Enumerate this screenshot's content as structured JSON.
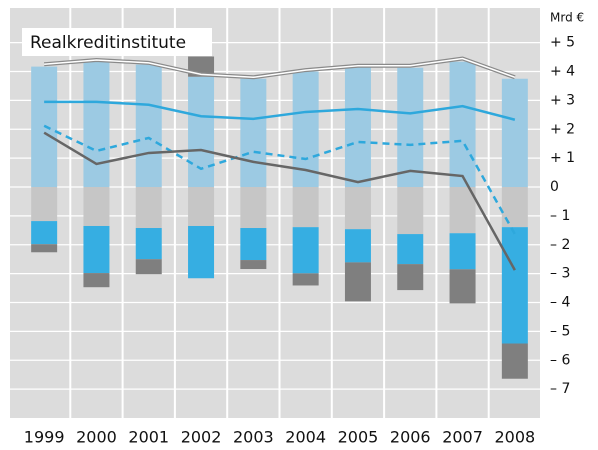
{
  "chart_data": {
    "type": "bar",
    "title": "Realkreditinstitute",
    "y_unit": "Mrd €",
    "categories": [
      "1999",
      "2000",
      "2001",
      "2002",
      "2003",
      "2004",
      "2005",
      "2006",
      "2007",
      "2008"
    ],
    "series": [
      {
        "kind": "bar",
        "color": "#9ccae3",
        "values": [
          4.17,
          4.34,
          4.24,
          3.82,
          3.75,
          4.0,
          4.17,
          4.13,
          4.34,
          3.75
        ]
      },
      {
        "kind": "bar",
        "color": "#c6c6c6",
        "values": [
          -1.18,
          -1.35,
          -1.42,
          -1.35,
          -1.42,
          -1.39,
          -1.46,
          -1.63,
          -1.6,
          -1.39
        ]
      },
      {
        "kind": "bar",
        "color": "#36aee2",
        "values": [
          -0.8,
          -1.63,
          -1.08,
          -1.81,
          -1.11,
          -1.6,
          -1.15,
          -1.04,
          -1.25,
          -4.03
        ]
      },
      {
        "kind": "bar",
        "color": "#7f7f7f",
        "values": [
          -0.28,
          -0.49,
          -0.52,
          0.7,
          -0.31,
          -0.42,
          -1.35,
          -0.9,
          -1.18,
          -1.22
        ]
      },
      {
        "kind": "double-line",
        "color": "#8a8a8a",
        "values": [
          4.25,
          4.4,
          4.3,
          3.9,
          3.8,
          4.05,
          4.2,
          4.2,
          4.45,
          3.8
        ]
      },
      {
        "kind": "line",
        "color": "#2ea8dc",
        "values": [
          2.95,
          2.95,
          2.85,
          2.45,
          2.36,
          2.6,
          2.7,
          2.55,
          2.8,
          2.33
        ]
      },
      {
        "kind": "line",
        "dash": true,
        "color": "#2ea8dc",
        "values": [
          2.12,
          1.25,
          1.7,
          0.63,
          1.22,
          0.97,
          1.56,
          1.46,
          1.6,
          -1.63
        ]
      },
      {
        "kind": "line",
        "color": "#666666",
        "values": [
          1.88,
          0.8,
          1.18,
          1.28,
          0.87,
          0.59,
          0.17,
          0.56,
          0.38,
          -2.88
        ]
      }
    ],
    "ylim": [
      -8,
      6.2
    ],
    "yticks": [
      {
        "value": 5,
        "label": "+ 5"
      },
      {
        "value": 4,
        "label": "+ 4"
      },
      {
        "value": 3,
        "label": "+ 3"
      },
      {
        "value": 2,
        "label": "+ 2"
      },
      {
        "value": 1,
        "label": "+ 1"
      },
      0,
      {
        "value": -1,
        "label": "– 1"
      },
      {
        "value": -2,
        "label": "– 2"
      },
      {
        "value": -3,
        "label": "– 3"
      },
      {
        "value": -4,
        "label": "– 4"
      },
      {
        "value": -5,
        "label": "– 5"
      },
      {
        "value": -6,
        "label": "– 6"
      },
      {
        "value": -7,
        "label": "– 7"
      }
    ],
    "grid": true
  }
}
